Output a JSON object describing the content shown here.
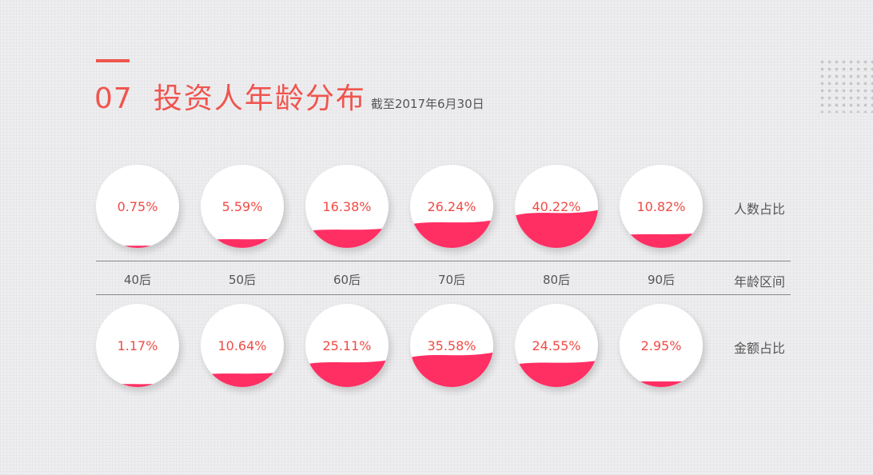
{
  "header": {
    "number": "07",
    "title": "投资人年龄分布",
    "subtitle": "截至2017年6月30日"
  },
  "colors": {
    "accent": "#f0554f",
    "fill": "#ff2f63",
    "text": "#ee4b45"
  },
  "chart_data": {
    "type": "liquid-fill",
    "categories": [
      "40后",
      "50后",
      "60后",
      "70后",
      "80后",
      "90后"
    ],
    "category_axis_label": "年龄区间",
    "series": [
      {
        "name": "人数占比",
        "values": [
          0.75,
          5.59,
          16.38,
          26.24,
          40.22,
          10.82
        ],
        "labels": [
          "0.75%",
          "5.59%",
          "16.38%",
          "26.24%",
          "40.22%",
          "10.82%"
        ]
      },
      {
        "name": "金额占比",
        "values": [
          1.17,
          10.64,
          25.11,
          35.58,
          24.55,
          2.95
        ],
        "labels": [
          "1.17%",
          "10.64%",
          "25.11%",
          "35.58%",
          "24.55%",
          "2.95%"
        ]
      }
    ]
  }
}
